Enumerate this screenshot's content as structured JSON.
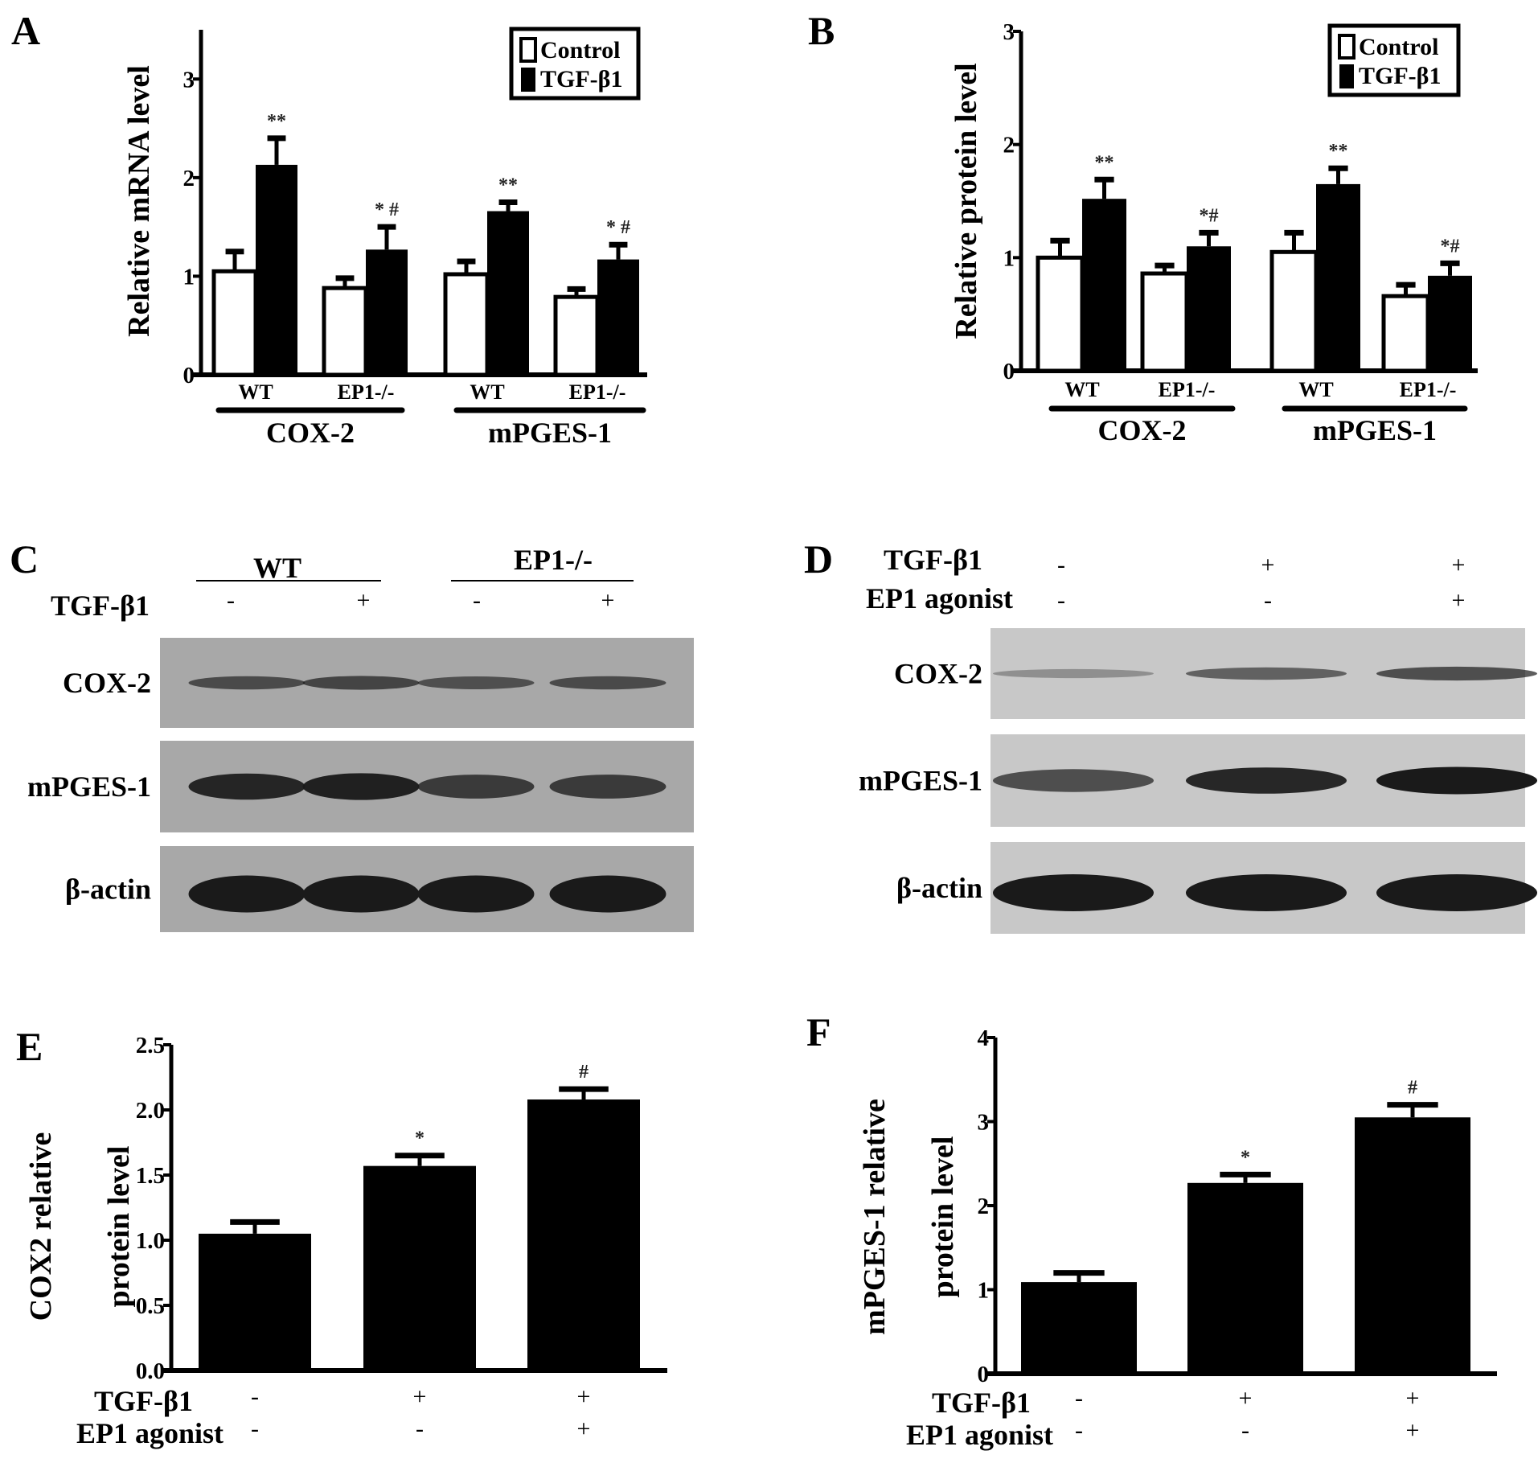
{
  "panels": {
    "a": "A",
    "b": "B",
    "c": "C",
    "d": "D",
    "e": "E",
    "f": "F"
  },
  "colors": {
    "control": "#ffffff",
    "tgf": "#000000",
    "blot_bg_c": "#a8a8a8",
    "blot_bg_d": "#c8c8c8",
    "band": "#1a1a1a"
  },
  "chart_data": [
    {
      "id": "A",
      "type": "bar",
      "ylabel": "Relative mRNA level",
      "ylim": [
        0,
        3.5
      ],
      "yticks": [
        "0",
        "1",
        "2",
        "3"
      ],
      "categories": [
        "WT",
        "EP1-/-",
        "WT",
        "EP1-/-"
      ],
      "groups": [
        {
          "label": "COX-2"
        },
        {
          "label": "mPGES-1"
        }
      ],
      "legend": {
        "position": "top-right",
        "entries": [
          "Control",
          "TGF-β1"
        ]
      },
      "series": [
        {
          "name": "Control",
          "values": [
            1.05,
            0.88,
            1.02,
            0.79
          ],
          "errors": [
            0.2,
            0.1,
            0.13,
            0.08
          ],
          "annotations": [
            "",
            "",
            "",
            ""
          ]
        },
        {
          "name": "TGF-β1",
          "values": [
            2.13,
            1.27,
            1.66,
            1.17
          ],
          "errors": [
            0.27,
            0.23,
            0.09,
            0.15
          ],
          "annotations": [
            "**",
            "* #",
            "**",
            "* #"
          ]
        }
      ]
    },
    {
      "id": "B",
      "type": "bar",
      "ylabel": "Relative protein level",
      "ylim": [
        0,
        3
      ],
      "yticks": [
        "0",
        "1",
        "2",
        "3"
      ],
      "categories": [
        "WT",
        "EP1-/-",
        "WT",
        "EP1-/-"
      ],
      "groups": [
        {
          "label": "COX-2"
        },
        {
          "label": "mPGES-1"
        }
      ],
      "legend": {
        "position": "top-right",
        "entries": [
          "Control",
          "TGF-β1"
        ]
      },
      "series": [
        {
          "name": "Control",
          "values": [
            1.0,
            0.86,
            1.05,
            0.66
          ],
          "errors": [
            0.15,
            0.07,
            0.17,
            0.1
          ],
          "annotations": [
            "",
            "",
            "",
            ""
          ]
        },
        {
          "name": "TGF-β1",
          "values": [
            1.52,
            1.1,
            1.65,
            0.84
          ],
          "errors": [
            0.17,
            0.12,
            0.14,
            0.11
          ],
          "annotations": [
            "**",
            "*#",
            "**",
            "*#"
          ]
        }
      ]
    },
    {
      "id": "E",
      "type": "bar",
      "ylabel": [
        "COX2 relative",
        "protein level"
      ],
      "ylim": [
        0,
        2.5
      ],
      "yticks": [
        "0.0",
        "0.5",
        "1.0",
        "1.5",
        "2.0",
        "2.5"
      ],
      "conditions": [
        {
          "label": "TGF-β1",
          "signs": [
            "-",
            "+",
            "+"
          ]
        },
        {
          "label": "EP1 agonist",
          "signs": [
            "-",
            "-",
            "+"
          ]
        }
      ],
      "values": [
        1.05,
        1.57,
        2.08
      ],
      "errors": [
        0.09,
        0.08,
        0.08
      ],
      "annotations": [
        "",
        "*",
        "#"
      ]
    },
    {
      "id": "F",
      "type": "bar",
      "ylabel": [
        "mPGES-1 relative",
        "protein level"
      ],
      "ylim": [
        0,
        4
      ],
      "yticks": [
        "0",
        "1",
        "2",
        "3",
        "4"
      ],
      "conditions": [
        {
          "label": "TGF-β1",
          "signs": [
            "-",
            "+",
            "+"
          ]
        },
        {
          "label": "EP1 agonist",
          "signs": [
            "-",
            "-",
            "+"
          ]
        }
      ],
      "values": [
        1.09,
        2.27,
        3.05
      ],
      "errors": [
        0.11,
        0.1,
        0.15
      ],
      "annotations": [
        "",
        "*",
        "#"
      ]
    }
  ],
  "blot_c": {
    "genotypes": [
      "WT",
      "EP1-/-"
    ],
    "treatment_label": "TGF-β1",
    "signs": [
      "-",
      "+",
      "-",
      "+"
    ],
    "rows": [
      {
        "label": "COX-2",
        "band_intensity": [
          0.55,
          0.6,
          0.5,
          0.55
        ]
      },
      {
        "label": "mPGES-1",
        "band_intensity": [
          0.9,
          0.95,
          0.7,
          0.7
        ]
      },
      {
        "label": "β-actin",
        "band_intensity": [
          1,
          1,
          1,
          1
        ]
      }
    ]
  },
  "blot_d": {
    "conditions": [
      {
        "label": "TGF-β1",
        "signs": [
          "-",
          "+",
          "+"
        ]
      },
      {
        "label": "EP1 agonist",
        "signs": [
          "-",
          "-",
          "+"
        ]
      }
    ],
    "rows": [
      {
        "label": "COX-2",
        "band_intensity": [
          0.1,
          0.45,
          0.6
        ]
      },
      {
        "label": "mPGES-1",
        "band_intensity": [
          0.6,
          0.9,
          1
        ]
      },
      {
        "label": "β-actin",
        "band_intensity": [
          1,
          1,
          1
        ]
      }
    ]
  }
}
